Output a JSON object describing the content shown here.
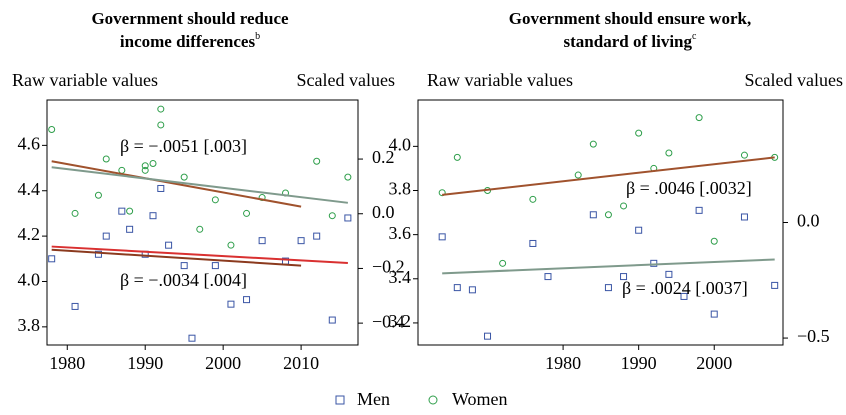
{
  "chart_data": [
    {
      "type": "scatter",
      "title": [
        "Government should reduce",
        "income differences"
      ],
      "title_sup": "b",
      "ylabel": "Raw variable values",
      "y2label": "Scaled values",
      "xlim": [
        1977.4,
        2017.3
      ],
      "xticks": [
        1980,
        1990,
        2000,
        2010
      ],
      "ylim": [
        3.72,
        4.8
      ],
      "yticks": [
        4.6,
        4.4,
        4.2,
        {
          "value": 4.0,
          "label": "4.0"
        },
        3.8
      ],
      "y2lim": [
        -0.48,
        0.416
      ],
      "y2ticks": [
        {
          "value": 0.2,
          "label": "0.2"
        },
        {
          "value": 0.0,
          "label": "0.0"
        },
        {
          "value": -0.2,
          "label": "−0.2"
        },
        {
          "value": -0.4,
          "label": "−0.4"
        }
      ],
      "series": [
        {
          "name": "Men",
          "marker": "square",
          "color": "#3a55a5",
          "x": [
            1978,
            1981,
            1984,
            1985,
            1987,
            1988,
            1990,
            1991,
            1992,
            1993,
            1995,
            1996,
            1999,
            2001,
            2003,
            2005,
            2008,
            2010,
            2012,
            2014,
            2016
          ],
          "values": [
            4.1,
            3.89,
            4.12,
            4.2,
            4.31,
            4.23,
            4.12,
            4.29,
            4.41,
            4.16,
            4.07,
            3.75,
            4.07,
            3.9,
            3.92,
            4.18,
            4.09,
            4.18,
            4.2,
            3.83,
            4.28
          ]
        },
        {
          "name": "Women",
          "marker": "circle",
          "color": "#2e9e4a",
          "x": [
            1978,
            1981,
            1984,
            1985,
            1987,
            1988,
            1990,
            1990,
            1991,
            1992,
            1992,
            1995,
            1997,
            1999,
            2001,
            2003,
            2005,
            2008,
            2012,
            2014,
            2016
          ],
          "values": [
            4.67,
            4.3,
            4.38,
            4.54,
            4.49,
            4.31,
            4.49,
            4.51,
            4.52,
            4.69,
            4.76,
            4.46,
            4.23,
            4.36,
            4.16,
            4.3,
            4.37,
            4.39,
            4.53,
            4.29,
            4.46
          ]
        }
      ],
      "fits": [
        {
          "color": "#a0522d",
          "axis": "y",
          "x": [
            1978,
            2010
          ],
          "values": [
            4.53,
            4.33
          ]
        },
        {
          "color": "#7f9a8c",
          "axis": "y2",
          "x": [
            1978,
            2016
          ],
          "values": [
            0.17,
            0.04
          ]
        },
        {
          "color": "#8b3a1e",
          "axis": "y",
          "x": [
            1978,
            2010
          ],
          "values": [
            4.14,
            4.07
          ]
        },
        {
          "color": "#d93030",
          "axis": "y2",
          "x": [
            1978,
            2016
          ],
          "values": [
            -0.12,
            -0.18
          ]
        }
      ],
      "annotations": [
        "β = −.0051 [.003]",
        "β = −.0034 [.004]"
      ]
    },
    {
      "type": "scatter",
      "title": [
        "Government should ensure work,",
        "standard of living"
      ],
      "title_sup": "c",
      "ylabel": "Raw variable values",
      "y2label": "Scaled values",
      "xlim": [
        1960.8,
        2009.1
      ],
      "xticks": [
        1980,
        1990,
        2000
      ],
      "ylim": [
        3.1,
        4.21
      ],
      "yticks": [
        {
          "value": 4.0,
          "label": "4.0"
        },
        3.8,
        3.6,
        3.4,
        3.2
      ],
      "y2lim": [
        -0.53,
        0.53
      ],
      "y2ticks": [
        {
          "value": 0.0,
          "label": "0.0"
        },
        {
          "value": -0.5,
          "label": "−0.5"
        }
      ],
      "series": [
        {
          "marker": "square",
          "color": "#3a55a5",
          "x": [
            1964,
            1966,
            1968,
            1970,
            1976,
            1978,
            1984,
            1986,
            1988,
            1990,
            1992,
            1994,
            1996,
            1998,
            2000,
            2004,
            2008
          ],
          "values": [
            3.59,
            3.36,
            3.35,
            3.14,
            3.56,
            3.41,
            3.69,
            3.36,
            3.41,
            3.62,
            3.47,
            3.42,
            3.32,
            3.71,
            3.24,
            3.68,
            3.37
          ]
        },
        {
          "marker": "circle",
          "color": "#2e9e4a",
          "x": [
            1964,
            1966,
            1970,
            1972,
            1976,
            1982,
            1984,
            1986,
            1988,
            1990,
            1992,
            1994,
            1998,
            2000,
            2004,
            2008
          ],
          "values": [
            3.79,
            3.95,
            3.8,
            3.47,
            3.76,
            3.87,
            4.01,
            3.69,
            3.73,
            4.06,
            3.9,
            3.97,
            4.13,
            3.57,
            3.96,
            3.95
          ]
        }
      ],
      "fits": [
        {
          "color": "#a0522d",
          "axis": "y",
          "x": [
            1964,
            2008
          ],
          "values": [
            3.78,
            3.95
          ]
        },
        {
          "color": "#7f9a8c",
          "axis": "y2",
          "x": [
            1964,
            2008
          ],
          "values": [
            -0.22,
            -0.16
          ]
        }
      ],
      "annotations": [
        "β = .0046 [.0032]",
        "β = .0024 [.0037]"
      ]
    }
  ]
}
